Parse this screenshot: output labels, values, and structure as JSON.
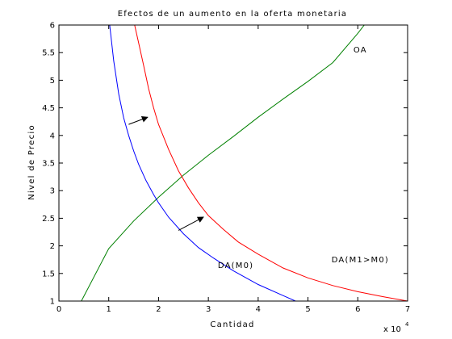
{
  "chart_data": {
    "type": "line",
    "title": "Efectos de un aumento en la oferta monetaria",
    "xlabel": "Cantidad",
    "ylabel": "Nivel de Precio",
    "x_multiplier": "x 10",
    "x_multiplier_exponent": "4",
    "xlim": [
      0,
      7
    ],
    "ylim": [
      1,
      6
    ],
    "x_ticks": [
      0,
      1,
      2,
      3,
      4,
      5,
      6,
      7
    ],
    "x_tick_labels": [
      "0",
      "1",
      "2",
      "3",
      "4",
      "5",
      "6",
      "7"
    ],
    "y_ticks": [
      1,
      1.5,
      2,
      2.5,
      3,
      3.5,
      4,
      4.5,
      5,
      5.5,
      6
    ],
    "y_tick_labels": [
      "1",
      "1.5",
      "2",
      "2.5",
      "3",
      "3.5",
      "4",
      "4.5",
      "5",
      "5.5",
      "6"
    ],
    "grid": false,
    "series": [
      {
        "name": "OA",
        "color": "#008000",
        "x": [
          0.45,
          1.0,
          1.5,
          2.0,
          2.5,
          3.0,
          3.5,
          4.0,
          4.5,
          5.0,
          5.5,
          6.0,
          6.13
        ],
        "y": [
          1.0,
          1.95,
          2.45,
          2.88,
          3.28,
          3.64,
          3.98,
          4.33,
          4.66,
          4.98,
          5.32,
          5.85,
          6.0
        ]
      },
      {
        "name": "DA(M0)",
        "color": "#0000ff",
        "x": [
          1.02,
          1.1,
          1.2,
          1.3,
          1.4,
          1.5,
          1.6,
          1.75,
          1.9,
          2.0,
          2.2,
          2.5,
          2.8,
          3.1,
          3.5,
          4.0,
          4.5,
          4.75
        ],
        "y": [
          6.0,
          5.35,
          4.75,
          4.32,
          4.0,
          3.72,
          3.48,
          3.18,
          2.93,
          2.78,
          2.52,
          2.22,
          1.97,
          1.78,
          1.55,
          1.3,
          1.1,
          1.0
        ]
      },
      {
        "name": "DA(M1>M0)",
        "color": "#ff0000",
        "x": [
          1.52,
          1.6,
          1.7,
          1.8,
          1.9,
          2.0,
          2.2,
          2.4,
          2.6,
          2.8,
          3.0,
          3.3,
          3.6,
          4.0,
          4.5,
          5.0,
          5.5,
          6.0,
          6.5,
          7.0
        ],
        "y": [
          6.0,
          5.68,
          5.27,
          4.85,
          4.5,
          4.2,
          3.75,
          3.36,
          3.05,
          2.78,
          2.55,
          2.3,
          2.07,
          1.85,
          1.6,
          1.42,
          1.28,
          1.17,
          1.08,
          1.0
        ]
      }
    ],
    "arrows": [
      {
        "from": [
          1.4,
          4.2
        ],
        "to": [
          1.78,
          4.33
        ]
      },
      {
        "from": [
          2.4,
          2.28
        ],
        "to": [
          2.9,
          2.52
        ]
      }
    ],
    "annotations": [
      {
        "text": "OA",
        "x": 6.05,
        "y": 5.5
      },
      {
        "text": "DA(M0)",
        "x": 3.55,
        "y": 1.6
      },
      {
        "text": "DA(M1>M0)",
        "x": 6.05,
        "y": 1.7
      }
    ]
  }
}
